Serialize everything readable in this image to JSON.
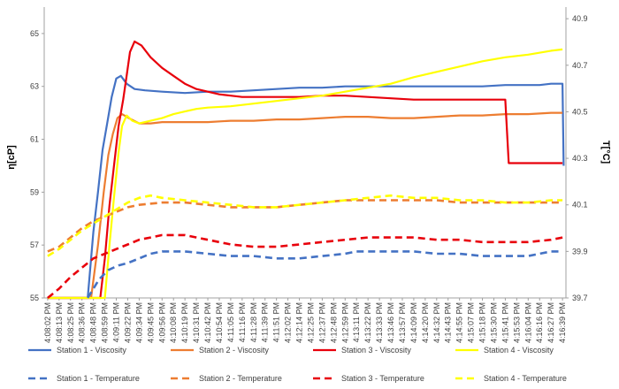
{
  "chart_data": {
    "type": "line",
    "title": "",
    "xlabel": "",
    "ylabel": "η[cP]",
    "y2label": "T[°C]",
    "ylim": [
      55,
      66
    ],
    "y2lim": [
      39.7,
      40.95
    ],
    "yticks": [
      "55",
      "57",
      "59",
      "61",
      "63",
      "65"
    ],
    "y2ticks": [
      "39.7",
      "39.9",
      "40.1",
      "40.3",
      "40.5",
      "40.7",
      "40.9"
    ],
    "categories": [
      "4:08:02 PM",
      "4:08:13 PM",
      "4:08:25 PM",
      "4:08:36 PM",
      "4:08:48 PM",
      "4:08:59 PM",
      "4:09:11 PM",
      "4:09:22 PM",
      "4:09:34 PM",
      "4:09:45 PM",
      "4:09:56 PM",
      "4:10:08 PM",
      "4:10:19 PM",
      "4:10:31 PM",
      "4:10:42 PM",
      "4:10:54 PM",
      "4:11:05 PM",
      "4:11:16 PM",
      "4:11:28 PM",
      "4:11:39 PM",
      "4:11:51 PM",
      "4:12:02 PM",
      "4:12:14 PM",
      "4:12:25 PM",
      "4:12:37 PM",
      "4:12:48 PM",
      "4:12:59 PM",
      "4:13:11 PM",
      "4:13:22 PM",
      "4:13:33 PM",
      "4:13:46 PM",
      "4:13:57 PM",
      "4:14:09 PM",
      "4:14:20 PM",
      "4:14:32 PM",
      "4:14:43 PM",
      "4:14:55 PM",
      "4:15:07 PM",
      "4:15:18 PM",
      "4:15:30 PM",
      "4:15:41 PM",
      "4:15:53 PM",
      "4:16:04 PM",
      "4:16:16 PM",
      "4:16:27 PM",
      "4:16:39 PM"
    ],
    "legend_position": "bottom",
    "grid": false,
    "series": [
      {
        "name": "Station 1 - Viscosity",
        "axis": "left",
        "color": "#4472C4",
        "dash": false,
        "points": [
          [
            0.0,
            55.0
          ],
          [
            3.5,
            55.0
          ],
          [
            4.0,
            57.5
          ],
          [
            4.4,
            59.0
          ],
          [
            4.8,
            60.6
          ],
          [
            5.2,
            61.6
          ],
          [
            5.6,
            62.6
          ],
          [
            6.0,
            63.3
          ],
          [
            6.4,
            63.4
          ],
          [
            6.9,
            63.1
          ],
          [
            7.6,
            62.9
          ],
          [
            8.5,
            62.85
          ],
          [
            10,
            62.8
          ],
          [
            12,
            62.75
          ],
          [
            14,
            62.8
          ],
          [
            16,
            62.8
          ],
          [
            18,
            62.85
          ],
          [
            20,
            62.9
          ],
          [
            22,
            62.95
          ],
          [
            24,
            62.95
          ],
          [
            26,
            63.0
          ],
          [
            28,
            63.0
          ],
          [
            30,
            63.0
          ],
          [
            32,
            63.0
          ],
          [
            34,
            63.0
          ],
          [
            36,
            63.0
          ],
          [
            38,
            63.0
          ],
          [
            40,
            63.05
          ],
          [
            42,
            63.05
          ],
          [
            43,
            63.05
          ],
          [
            44,
            63.1
          ],
          [
            45.0,
            63.1
          ],
          [
            45.1,
            60.0
          ]
        ]
      },
      {
        "name": "Station 2 - Viscosity",
        "axis": "left",
        "color": "#ED7D31",
        "dash": false,
        "points": [
          [
            0.0,
            55.0
          ],
          [
            3.8,
            55.0
          ],
          [
            4.4,
            57.0
          ],
          [
            4.9,
            59.0
          ],
          [
            5.3,
            60.4
          ],
          [
            5.7,
            61.2
          ],
          [
            6.1,
            61.8
          ],
          [
            6.5,
            61.95
          ],
          [
            7.1,
            61.8
          ],
          [
            8,
            61.6
          ],
          [
            9,
            61.6
          ],
          [
            10,
            61.65
          ],
          [
            12,
            61.65
          ],
          [
            14,
            61.65
          ],
          [
            16,
            61.7
          ],
          [
            18,
            61.7
          ],
          [
            20,
            61.75
          ],
          [
            22,
            61.75
          ],
          [
            24,
            61.8
          ],
          [
            26,
            61.85
          ],
          [
            28,
            61.85
          ],
          [
            30,
            61.8
          ],
          [
            32,
            61.8
          ],
          [
            34,
            61.85
          ],
          [
            36,
            61.9
          ],
          [
            38,
            61.9
          ],
          [
            40,
            61.95
          ],
          [
            42,
            61.95
          ],
          [
            44,
            62.0
          ],
          [
            45,
            62.0
          ]
        ]
      },
      {
        "name": "Station 3 - Viscosity",
        "axis": "left",
        "color": "#E8000B",
        "dash": false,
        "points": [
          [
            0.0,
            55.0
          ],
          [
            4.6,
            55.0
          ],
          [
            5.0,
            56.5
          ],
          [
            5.4,
            58.5
          ],
          [
            5.8,
            60.0
          ],
          [
            6.2,
            61.5
          ],
          [
            6.6,
            62.5
          ],
          [
            6.9,
            63.4
          ],
          [
            7.2,
            64.3
          ],
          [
            7.6,
            64.7
          ],
          [
            8.2,
            64.55
          ],
          [
            9,
            64.1
          ],
          [
            10,
            63.7
          ],
          [
            11,
            63.4
          ],
          [
            12,
            63.1
          ],
          [
            13,
            62.9
          ],
          [
            14,
            62.8
          ],
          [
            15,
            62.7
          ],
          [
            16,
            62.65
          ],
          [
            17,
            62.6
          ],
          [
            18,
            62.6
          ],
          [
            20,
            62.6
          ],
          [
            22,
            62.6
          ],
          [
            24,
            62.65
          ],
          [
            26,
            62.65
          ],
          [
            28,
            62.6
          ],
          [
            30,
            62.55
          ],
          [
            32,
            62.5
          ],
          [
            34,
            62.5
          ],
          [
            36,
            62.5
          ],
          [
            38,
            62.5
          ],
          [
            40,
            62.5
          ],
          [
            40.3,
            60.1
          ],
          [
            42,
            60.1
          ],
          [
            44,
            60.1
          ],
          [
            45,
            60.1
          ]
        ]
      },
      {
        "name": "Station 4 - Viscosity",
        "axis": "left",
        "color": "#FFFF00",
        "dash": false,
        "points": [
          [
            0.0,
            55.0
          ],
          [
            5.0,
            55.0
          ],
          [
            5.4,
            57.0
          ],
          [
            5.8,
            58.8
          ],
          [
            6.2,
            60.5
          ],
          [
            6.5,
            61.5
          ],
          [
            6.9,
            61.9
          ],
          [
            7.4,
            61.7
          ],
          [
            8,
            61.6
          ],
          [
            9,
            61.7
          ],
          [
            10,
            61.8
          ],
          [
            11,
            61.95
          ],
          [
            12,
            62.05
          ],
          [
            13,
            62.15
          ],
          [
            14,
            62.2
          ],
          [
            16,
            62.25
          ],
          [
            18,
            62.35
          ],
          [
            20,
            62.45
          ],
          [
            22,
            62.55
          ],
          [
            24,
            62.65
          ],
          [
            26,
            62.8
          ],
          [
            28,
            62.95
          ],
          [
            30,
            63.1
          ],
          [
            32,
            63.35
          ],
          [
            34,
            63.55
          ],
          [
            36,
            63.75
          ],
          [
            38,
            63.95
          ],
          [
            40,
            64.1
          ],
          [
            42,
            64.2
          ],
          [
            44,
            64.35
          ],
          [
            45,
            64.4
          ]
        ]
      },
      {
        "name": "Station 1 - Temperature",
        "axis": "right",
        "color": "#4472C4",
        "dash": true,
        "points": [
          [
            3.5,
            39.7
          ],
          [
            4.5,
            39.78
          ],
          [
            5.3,
            39.82
          ],
          [
            6.2,
            39.84
          ],
          [
            7,
            39.85
          ],
          [
            8,
            39.87
          ],
          [
            9,
            39.89
          ],
          [
            10,
            39.9
          ],
          [
            11,
            39.9
          ],
          [
            12,
            39.9
          ],
          [
            14,
            39.89
          ],
          [
            16,
            39.88
          ],
          [
            18,
            39.88
          ],
          [
            20,
            39.87
          ],
          [
            22,
            39.87
          ],
          [
            24,
            39.88
          ],
          [
            26,
            39.89
          ],
          [
            27,
            39.9
          ],
          [
            28,
            39.9
          ],
          [
            30,
            39.9
          ],
          [
            32,
            39.9
          ],
          [
            34,
            39.89
          ],
          [
            36,
            39.89
          ],
          [
            38,
            39.88
          ],
          [
            40,
            39.88
          ],
          [
            42,
            39.88
          ],
          [
            44,
            39.9
          ],
          [
            45,
            39.9
          ]
        ]
      },
      {
        "name": "Station 2 - Temperature",
        "axis": "right",
        "color": "#ED7D31",
        "dash": true,
        "points": [
          [
            0,
            39.9
          ],
          [
            1,
            39.92
          ],
          [
            2,
            39.96
          ],
          [
            3,
            40.0
          ],
          [
            4,
            40.03
          ],
          [
            5,
            40.05
          ],
          [
            6,
            40.07
          ],
          [
            7,
            40.09
          ],
          [
            8,
            40.1
          ],
          [
            10,
            40.11
          ],
          [
            12,
            40.11
          ],
          [
            14,
            40.1
          ],
          [
            16,
            40.09
          ],
          [
            18,
            40.09
          ],
          [
            20,
            40.09
          ],
          [
            22,
            40.1
          ],
          [
            24,
            40.11
          ],
          [
            26,
            40.12
          ],
          [
            28,
            40.12
          ],
          [
            30,
            40.12
          ],
          [
            32,
            40.12
          ],
          [
            34,
            40.12
          ],
          [
            36,
            40.11
          ],
          [
            38,
            40.11
          ],
          [
            40,
            40.11
          ],
          [
            42,
            40.11
          ],
          [
            44,
            40.11
          ],
          [
            45,
            40.11
          ]
        ]
      },
      {
        "name": "Station 3 - Temperature",
        "axis": "right",
        "color": "#E8000B",
        "dash": true,
        "points": [
          [
            0,
            39.7
          ],
          [
            1,
            39.74
          ],
          [
            2,
            39.79
          ],
          [
            3,
            39.83
          ],
          [
            4,
            39.87
          ],
          [
            5,
            39.89
          ],
          [
            6,
            39.91
          ],
          [
            7,
            39.93
          ],
          [
            8,
            39.95
          ],
          [
            9,
            39.96
          ],
          [
            10,
            39.97
          ],
          [
            12,
            39.97
          ],
          [
            14,
            39.95
          ],
          [
            16,
            39.93
          ],
          [
            18,
            39.92
          ],
          [
            20,
            39.92
          ],
          [
            22,
            39.93
          ],
          [
            24,
            39.94
          ],
          [
            26,
            39.95
          ],
          [
            28,
            39.96
          ],
          [
            30,
            39.96
          ],
          [
            32,
            39.96
          ],
          [
            34,
            39.95
          ],
          [
            36,
            39.95
          ],
          [
            38,
            39.94
          ],
          [
            40,
            39.94
          ],
          [
            42,
            39.94
          ],
          [
            44,
            39.95
          ],
          [
            45,
            39.96
          ]
        ]
      },
      {
        "name": "Station 4 - Temperature",
        "axis": "right",
        "color": "#FFFF00",
        "dash": true,
        "points": [
          [
            0,
            39.88
          ],
          [
            1,
            39.91
          ],
          [
            2,
            39.95
          ],
          [
            3,
            39.99
          ],
          [
            4,
            40.02
          ],
          [
            5,
            40.05
          ],
          [
            6,
            40.08
          ],
          [
            7,
            40.11
          ],
          [
            8,
            40.13
          ],
          [
            9,
            40.14
          ],
          [
            10,
            40.13
          ],
          [
            12,
            40.12
          ],
          [
            14,
            40.11
          ],
          [
            16,
            40.1
          ],
          [
            18,
            40.09
          ],
          [
            20,
            40.09
          ],
          [
            22,
            40.1
          ],
          [
            24,
            40.11
          ],
          [
            26,
            40.12
          ],
          [
            28,
            40.13
          ],
          [
            30,
            40.14
          ],
          [
            32,
            40.13
          ],
          [
            34,
            40.13
          ],
          [
            36,
            40.12
          ],
          [
            38,
            40.12
          ],
          [
            40,
            40.11
          ],
          [
            42,
            40.11
          ],
          [
            44,
            40.12
          ],
          [
            45,
            40.12
          ]
        ]
      }
    ]
  }
}
